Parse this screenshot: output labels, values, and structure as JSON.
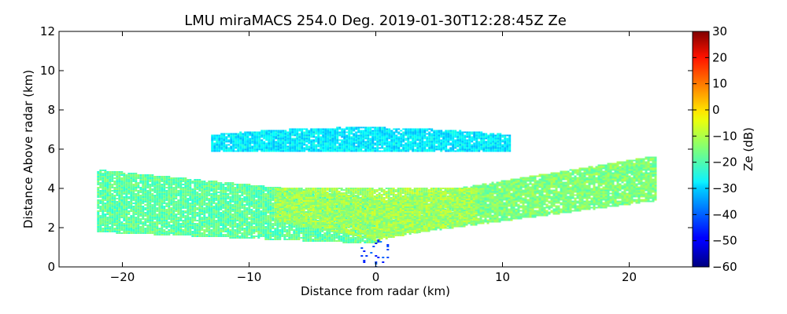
{
  "chart_data": {
    "type": "heatmap",
    "title": "LMU miraMACS 254.0 Deg. 2019-01-30T12:28:45Z  Ze",
    "xlabel": "Distance from radar (km)",
    "ylabel": "Distance Above radar  (km)",
    "xlim": [
      -25,
      25
    ],
    "ylim": [
      0,
      12
    ],
    "xticks": [
      -20,
      -10,
      0,
      10,
      20
    ],
    "xtick_labels": [
      "−20",
      "−10",
      "0",
      "10",
      "20"
    ],
    "yticks": [
      0,
      2,
      4,
      6,
      8,
      10,
      12
    ],
    "ytick_labels": [
      "0",
      "2",
      "4",
      "6",
      "8",
      "10",
      "12"
    ],
    "colorbar": {
      "label": "Ze (dB)",
      "range": [
        -60,
        30
      ],
      "ticks": [
        30,
        20,
        10,
        0,
        -10,
        -20,
        -30,
        -40,
        -50,
        -60
      ],
      "tick_labels": [
        "30",
        "20",
        "10",
        "0",
        "−10",
        "−20",
        "−30",
        "−40",
        "−50",
        "−60"
      ],
      "colormap": "jet"
    },
    "features": [
      {
        "name": "upper-cloud-layer",
        "x_range": [
          -13,
          10.5
        ],
        "z_range": [
          5.8,
          7.3
        ],
        "ze_dB": -28
      },
      {
        "name": "left-lower-band",
        "x_range": [
          -22,
          0
        ],
        "z_range": [
          1.2,
          5.2
        ],
        "ze_dB": -18
      },
      {
        "name": "right-lower-band",
        "x_range": [
          0,
          22
        ],
        "z_range": [
          1.5,
          5.7
        ],
        "ze_dB": -15
      },
      {
        "name": "central-core",
        "x_range": [
          -8,
          8
        ],
        "z_range": [
          1.2,
          4.6
        ],
        "ze_dB": -12
      },
      {
        "name": "near-surface-echo",
        "x_range": [
          -2.5,
          1
        ],
        "z_range": [
          0,
          1.4
        ],
        "ze_dB": -42
      }
    ]
  }
}
